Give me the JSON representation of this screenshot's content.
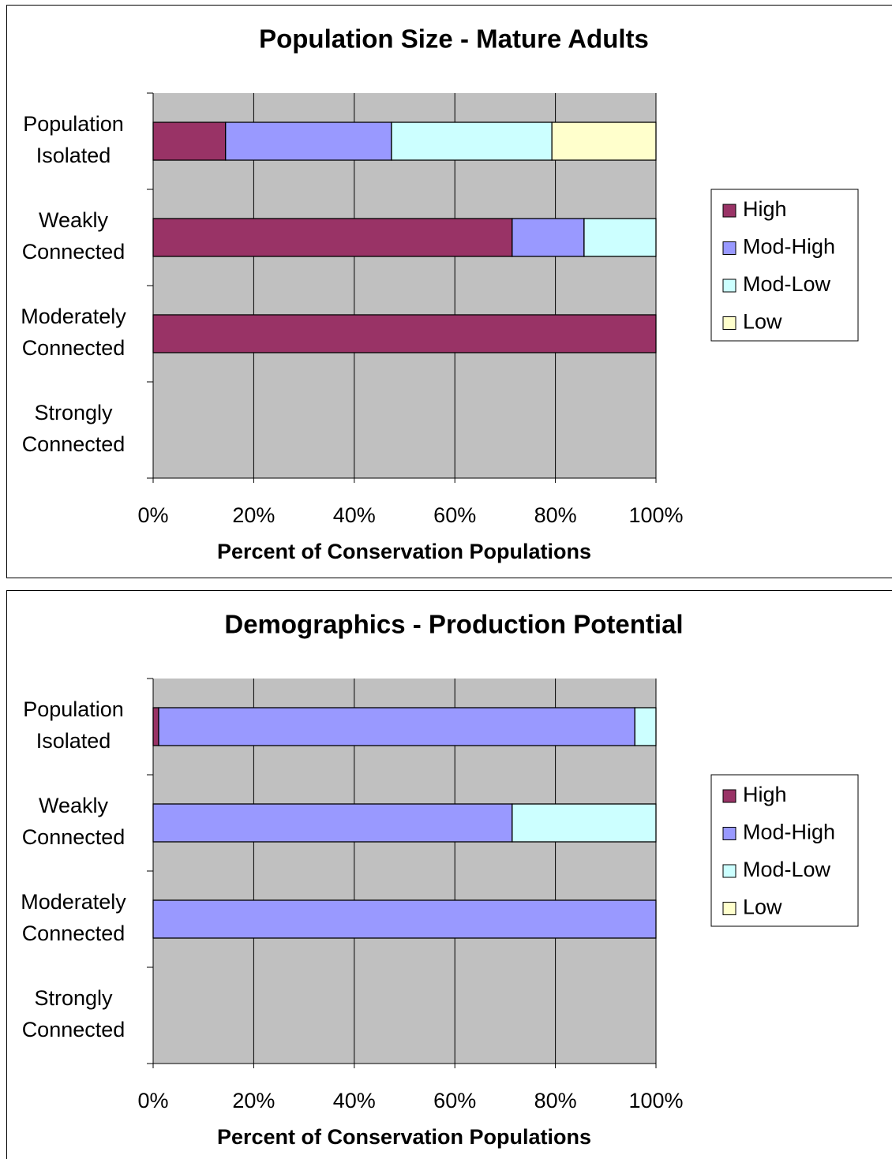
{
  "chart_data": [
    {
      "type": "stacked-bar-horizontal",
      "title": "Population Size - Mature Adults",
      "x_label": "Percent of Conservation Populations",
      "categories": [
        "Population Isolated",
        "Weakly Connected",
        "Moderately Connected",
        "Strongly Connected"
      ],
      "series": [
        {
          "name": "High",
          "color": "#993366",
          "values": [
            14.4,
            71.4,
            100,
            0
          ]
        },
        {
          "name": "Mod-High",
          "color": "#9999ff",
          "values": [
            33,
            14.3,
            0,
            0
          ]
        },
        {
          "name": "Mod-Low",
          "color": "#ccffff",
          "values": [
            31.9,
            14.3,
            0,
            0
          ]
        },
        {
          "name": "Low",
          "color": "#ffffcc",
          "values": [
            20.7,
            0,
            0,
            0
          ]
        }
      ],
      "xlim": [
        0,
        100
      ],
      "xticks": [
        {
          "value": 0,
          "label": "0%"
        },
        {
          "value": 20,
          "label": "20%"
        },
        {
          "value": 40,
          "label": "40%"
        },
        {
          "value": 60,
          "label": "60%"
        },
        {
          "value": 80,
          "label": "80%"
        },
        {
          "value": 100,
          "label": "100%"
        }
      ],
      "grid": true,
      "legend": "right"
    },
    {
      "type": "stacked-bar-horizontal",
      "title": "Demographics - Production Potential",
      "x_label": "Percent of Conservation Populations",
      "categories": [
        "Population Isolated",
        "Weakly Connected",
        "Moderately Connected",
        "Strongly Connected"
      ],
      "series": [
        {
          "name": "High",
          "color": "#993366",
          "values": [
            1.1,
            0,
            0,
            0
          ]
        },
        {
          "name": "Mod-High",
          "color": "#9999ff",
          "values": [
            94.7,
            71.4,
            100,
            0
          ]
        },
        {
          "name": "Mod-Low",
          "color": "#ccffff",
          "values": [
            4.2,
            28.6,
            0,
            0
          ]
        },
        {
          "name": "Low",
          "color": "#ffffcc",
          "values": [
            0,
            0,
            0,
            0
          ]
        }
      ],
      "xlim": [
        0,
        100
      ],
      "xticks": [
        {
          "value": 0,
          "label": "0%"
        },
        {
          "value": 20,
          "label": "20%"
        },
        {
          "value": 40,
          "label": "40%"
        },
        {
          "value": 60,
          "label": "60%"
        },
        {
          "value": 80,
          "label": "80%"
        },
        {
          "value": 100,
          "label": "100%"
        }
      ],
      "grid": true,
      "legend": "right"
    }
  ]
}
